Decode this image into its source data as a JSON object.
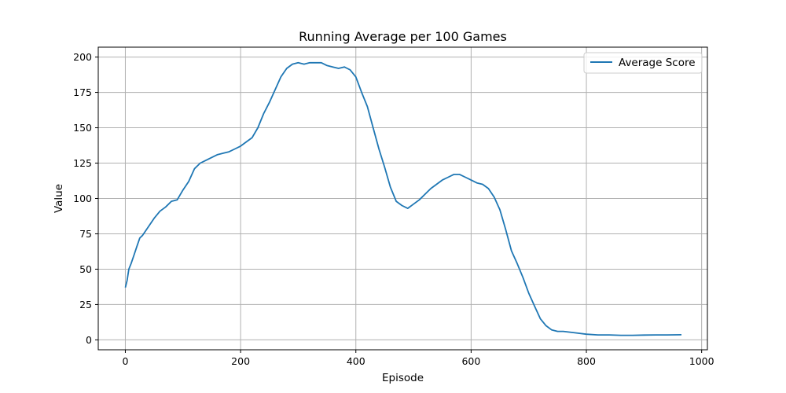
{
  "chart_data": {
    "type": "line",
    "title": "Running Average per 100 Games",
    "xlabel": "Episode",
    "ylabel": "Value",
    "xlim": [
      -47,
      1010
    ],
    "ylim": [
      -7,
      207
    ],
    "xticks": [
      0,
      200,
      400,
      600,
      800,
      1000
    ],
    "yticks": [
      0,
      25,
      50,
      75,
      100,
      125,
      150,
      175,
      200
    ],
    "grid": true,
    "legend_position": "top-right",
    "series": [
      {
        "name": "Average Score",
        "color": "#1f77b4",
        "x": [
          0,
          3,
          6,
          10,
          15,
          20,
          25,
          30,
          40,
          50,
          60,
          70,
          80,
          90,
          100,
          110,
          120,
          130,
          140,
          150,
          160,
          170,
          180,
          190,
          200,
          210,
          220,
          230,
          240,
          250,
          260,
          270,
          280,
          290,
          300,
          310,
          320,
          330,
          340,
          350,
          360,
          370,
          380,
          385,
          390,
          400,
          410,
          420,
          430,
          440,
          450,
          460,
          470,
          480,
          490,
          500,
          510,
          520,
          530,
          540,
          550,
          560,
          570,
          580,
          590,
          600,
          610,
          620,
          630,
          640,
          650,
          660,
          670,
          680,
          690,
          700,
          710,
          720,
          730,
          740,
          750,
          760,
          780,
          800,
          820,
          840,
          860,
          880,
          900,
          920,
          940,
          965
        ],
        "y": [
          37,
          42,
          50,
          54,
          60,
          66,
          72,
          74,
          80,
          86,
          91,
          94,
          98,
          99,
          106,
          112,
          121,
          125,
          127,
          129,
          131,
          132,
          133,
          135,
          137,
          140,
          143,
          150,
          160,
          168,
          177,
          186,
          192,
          195,
          196,
          195,
          196,
          196,
          196,
          194,
          193,
          192,
          193,
          192,
          191,
          186,
          175,
          165,
          150,
          135,
          122,
          108,
          98,
          95,
          93,
          96,
          99,
          103,
          107,
          110,
          113,
          115,
          117,
          117,
          115,
          113,
          111,
          110,
          107,
          101,
          92,
          78,
          63,
          54,
          44,
          33,
          24,
          15,
          10,
          7,
          6,
          6,
          5,
          4,
          3.5,
          3.5,
          3.2,
          3.2,
          3.4,
          3.5,
          3.5,
          3.6
        ]
      }
    ]
  }
}
